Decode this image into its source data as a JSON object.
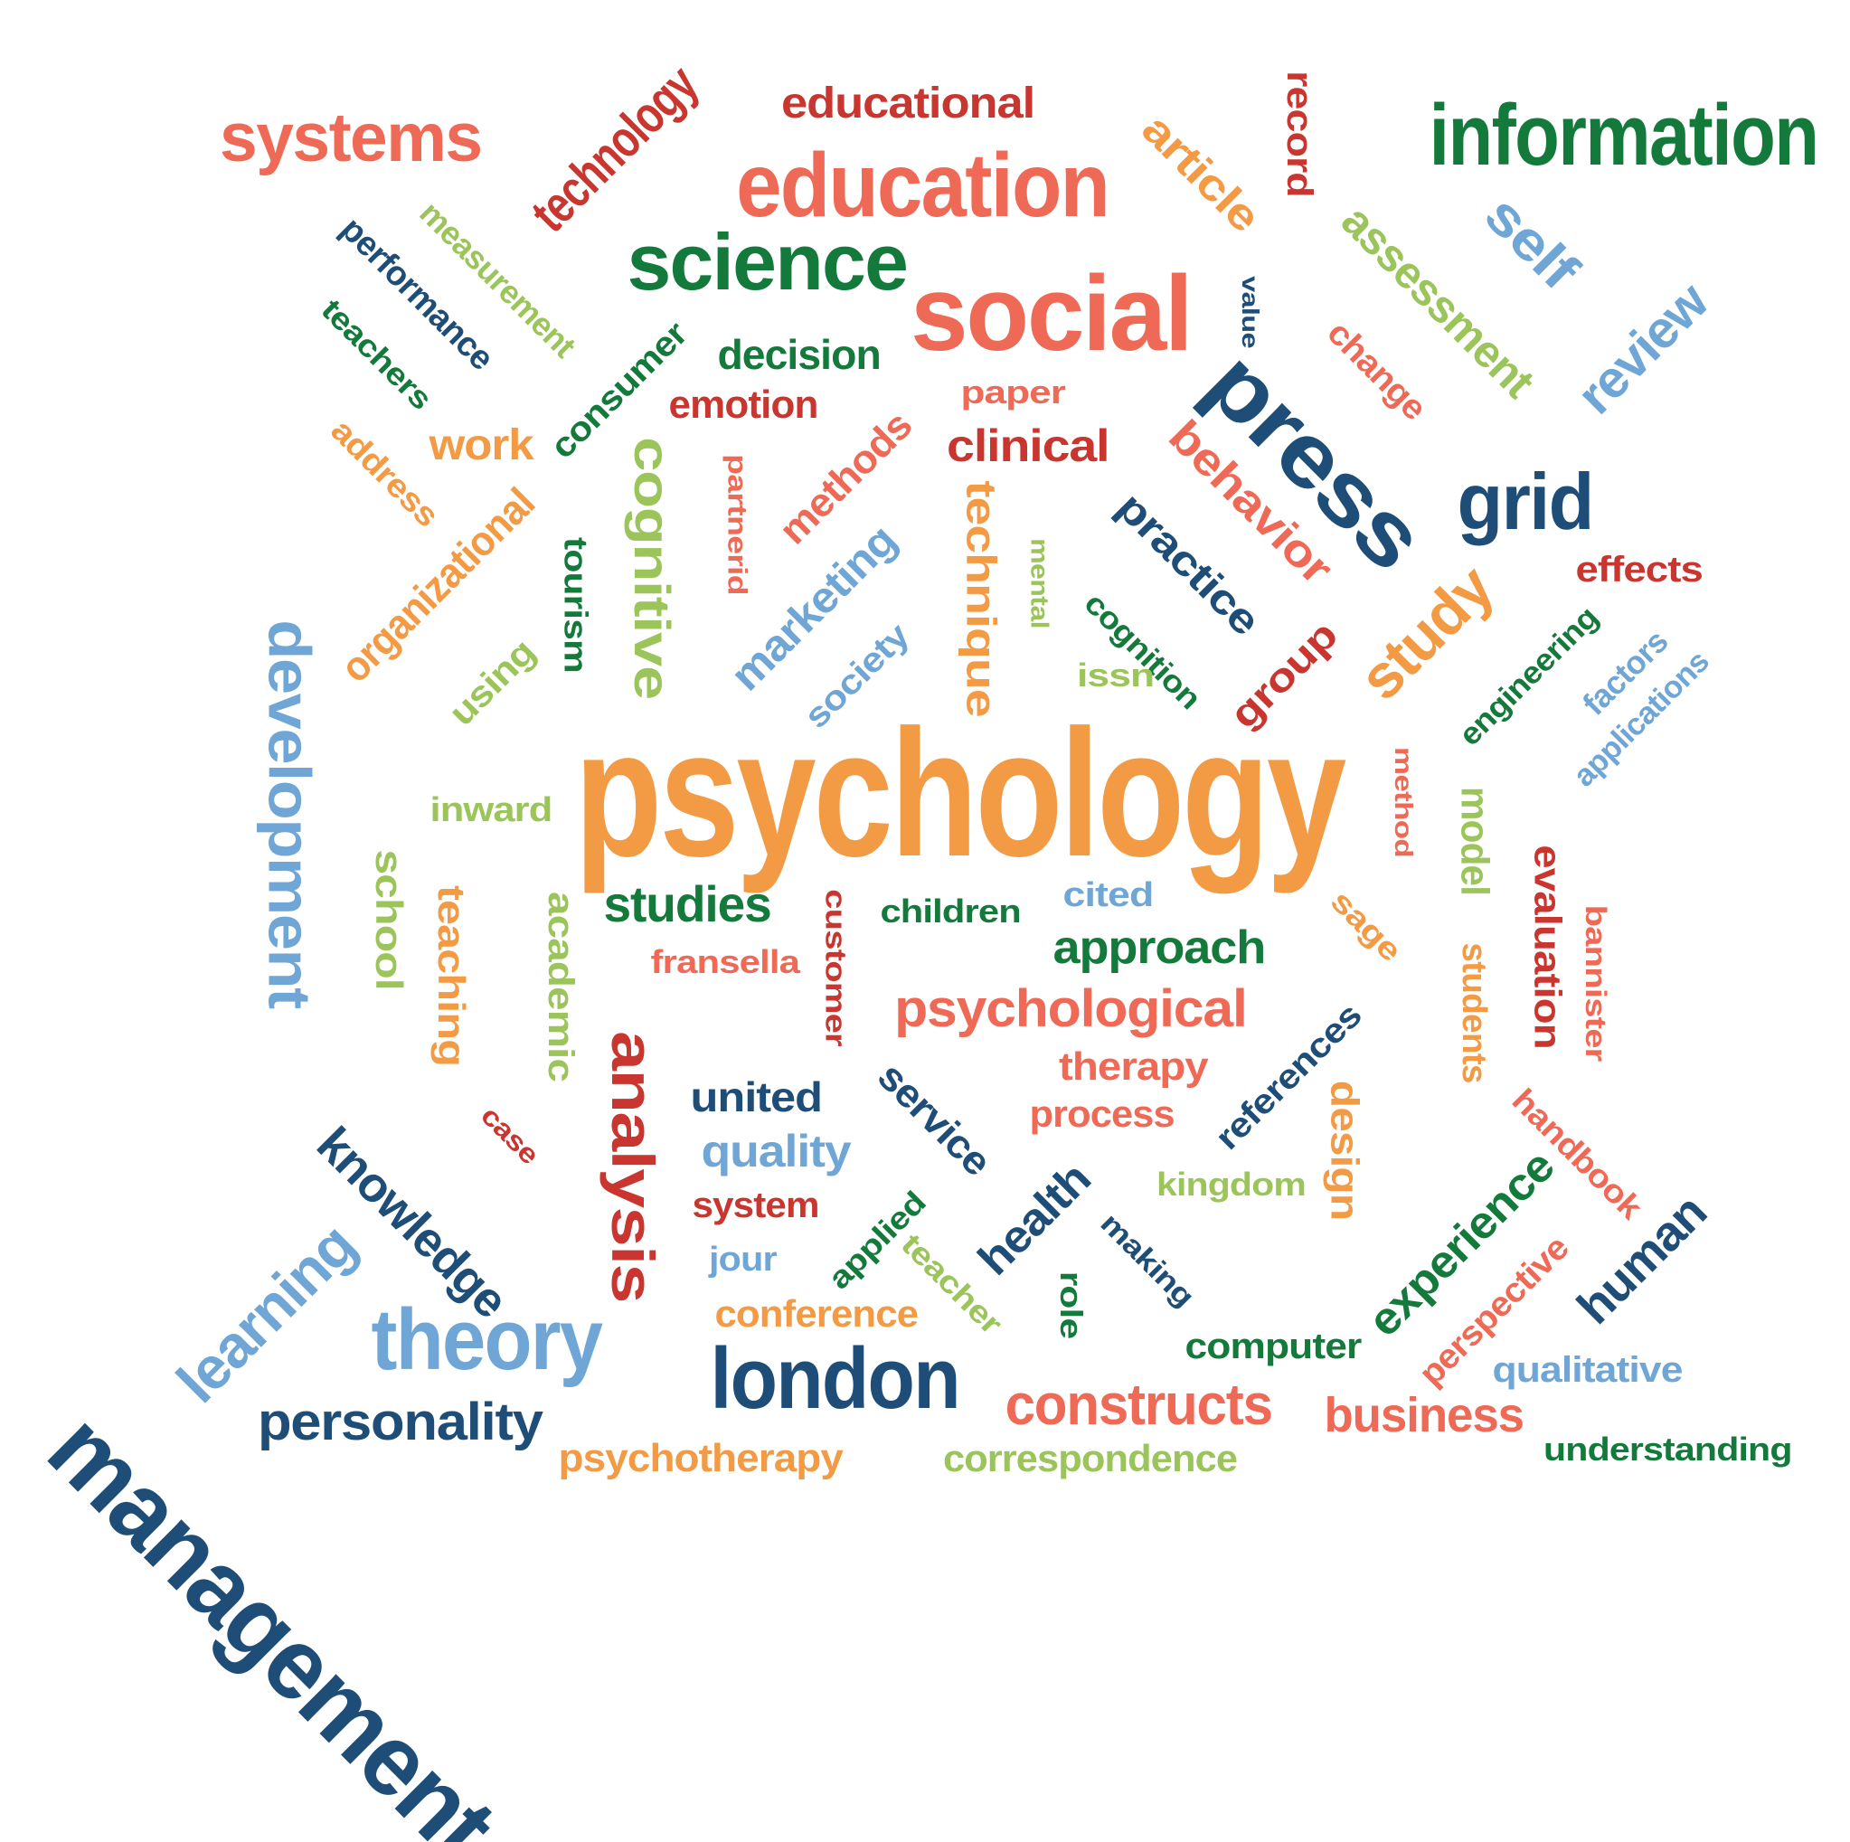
{
  "colors": {
    "dark_blue": "#1e4d78",
    "light_blue": "#6fa6d6",
    "dark_green": "#147a3c",
    "light_green": "#9bc55a",
    "orange": "#f39a45",
    "salmon": "#ee6a56",
    "red": "#c8362f"
  },
  "words": [
    {
      "text": "psychology",
      "color": "orange",
      "weight": 100
    },
    {
      "text": "management",
      "color": "dark_blue",
      "weight": 52
    },
    {
      "text": "information",
      "color": "dark_green",
      "weight": 48
    },
    {
      "text": "social",
      "color": "salmon",
      "weight": 48
    },
    {
      "text": "education",
      "color": "salmon",
      "weight": 46
    },
    {
      "text": "development",
      "color": "light_blue",
      "weight": 44
    },
    {
      "text": "london",
      "color": "dark_blue",
      "weight": 44
    },
    {
      "text": "press",
      "color": "dark_blue",
      "weight": 44
    },
    {
      "text": "theory",
      "color": "light_blue",
      "weight": 42
    },
    {
      "text": "science",
      "color": "dark_green",
      "weight": 42
    },
    {
      "text": "systems",
      "color": "salmon",
      "weight": 40
    },
    {
      "text": "grid",
      "color": "dark_blue",
      "weight": 40
    },
    {
      "text": "analysis",
      "color": "red",
      "weight": 40
    },
    {
      "text": "study",
      "color": "orange",
      "weight": 38
    },
    {
      "text": "learning",
      "color": "light_blue",
      "weight": 38
    },
    {
      "text": "technology",
      "color": "red",
      "weight": 34
    },
    {
      "text": "constructs",
      "color": "salmon",
      "weight": 34
    },
    {
      "text": "cognitive",
      "color": "light_green",
      "weight": 34
    },
    {
      "text": "self",
      "color": "light_blue",
      "weight": 34
    },
    {
      "text": "review",
      "color": "light_blue",
      "weight": 34
    },
    {
      "text": "personality",
      "color": "dark_blue",
      "weight": 32
    },
    {
      "text": "knowledge",
      "color": "dark_blue",
      "weight": 32
    },
    {
      "text": "human",
      "color": "dark_blue",
      "weight": 32
    },
    {
      "text": "psychological",
      "color": "salmon",
      "weight": 32
    },
    {
      "text": "business",
      "color": "salmon",
      "weight": 32
    },
    {
      "text": "approach",
      "color": "dark_green",
      "weight": 30
    },
    {
      "text": "assessment",
      "color": "light_green",
      "weight": 30
    },
    {
      "text": "behavior",
      "color": "salmon",
      "weight": 30
    },
    {
      "text": "studies",
      "color": "dark_green",
      "weight": 30
    },
    {
      "text": "experience",
      "color": "dark_green",
      "weight": 30
    },
    {
      "text": "practice",
      "color": "dark_blue",
      "weight": 28
    },
    {
      "text": "marketing",
      "color": "light_blue",
      "weight": 28
    },
    {
      "text": "technique",
      "color": "orange",
      "weight": 28
    },
    {
      "text": "educational",
      "color": "red",
      "weight": 28
    },
    {
      "text": "article",
      "color": "orange",
      "weight": 28
    },
    {
      "text": "organizational",
      "color": "orange",
      "weight": 28
    },
    {
      "text": "health",
      "color": "dark_blue",
      "weight": 28
    },
    {
      "text": "quality",
      "color": "light_blue",
      "weight": 28
    },
    {
      "text": "united",
      "color": "dark_blue",
      "weight": 28
    },
    {
      "text": "design",
      "color": "orange",
      "weight": 28
    },
    {
      "text": "clinical",
      "color": "red",
      "weight": 28
    },
    {
      "text": "evaluation",
      "color": "red",
      "weight": 26
    },
    {
      "text": "model",
      "color": "light_green",
      "weight": 26
    },
    {
      "text": "work",
      "color": "orange",
      "weight": 26
    },
    {
      "text": "methods",
      "color": "salmon",
      "weight": 26
    },
    {
      "text": "group",
      "color": "red",
      "weight": 26
    },
    {
      "text": "decision",
      "color": "dark_green",
      "weight": 26
    },
    {
      "text": "therapy",
      "color": "salmon",
      "weight": 26
    },
    {
      "text": "service",
      "color": "dark_blue",
      "weight": 26
    },
    {
      "text": "emotion",
      "color": "red",
      "weight": 26
    },
    {
      "text": "teaching",
      "color": "orange",
      "weight": 26
    },
    {
      "text": "psychotherapy",
      "color": "orange",
      "weight": 26
    },
    {
      "text": "correspondence",
      "color": "light_green",
      "weight": 26
    },
    {
      "text": "performance",
      "color": "dark_blue",
      "weight": 24
    },
    {
      "text": "measurement",
      "color": "light_green",
      "weight": 24
    },
    {
      "text": "academic",
      "color": "light_green",
      "weight": 24
    },
    {
      "text": "school",
      "color": "light_green",
      "weight": 24
    },
    {
      "text": "conference",
      "color": "orange",
      "weight": 24
    },
    {
      "text": "process",
      "color": "salmon",
      "weight": 24
    },
    {
      "text": "references",
      "color": "dark_blue",
      "weight": 24
    },
    {
      "text": "computer",
      "color": "dark_green",
      "weight": 24
    },
    {
      "text": "consumer",
      "color": "dark_green",
      "weight": 24
    },
    {
      "text": "students",
      "color": "orange",
      "weight": 24
    },
    {
      "text": "perspective",
      "color": "salmon",
      "weight": 24
    },
    {
      "text": "qualitative",
      "color": "light_blue",
      "weight": 24
    },
    {
      "text": "handbook",
      "color": "salmon",
      "weight": 24
    },
    {
      "text": "using",
      "color": "light_green",
      "weight": 24
    },
    {
      "text": "system",
      "color": "red",
      "weight": 24
    },
    {
      "text": "effects",
      "color": "red",
      "weight": 24
    },
    {
      "text": "change",
      "color": "salmon",
      "weight": 24
    },
    {
      "text": "record",
      "color": "red",
      "weight": 24
    },
    {
      "text": "tourism",
      "color": "dark_green",
      "weight": 24
    },
    {
      "text": "society",
      "color": "light_blue",
      "weight": 24
    },
    {
      "text": "factors",
      "color": "light_blue",
      "weight": 22
    },
    {
      "text": "applications",
      "color": "light_blue",
      "weight": 22
    },
    {
      "text": "engineering",
      "color": "dark_green",
      "weight": 22
    },
    {
      "text": "teachers",
      "color": "dark_green",
      "weight": 22
    },
    {
      "text": "address",
      "color": "orange",
      "weight": 22
    },
    {
      "text": "cognition",
      "color": "dark_green",
      "weight": 22
    },
    {
      "text": "understanding",
      "color": "dark_green",
      "weight": 22
    },
    {
      "text": "children",
      "color": "dark_green",
      "weight": 22
    },
    {
      "text": "fransella",
      "color": "salmon",
      "weight": 22
    },
    {
      "text": "kingdom",
      "color": "light_green",
      "weight": 22
    },
    {
      "text": "teacher",
      "color": "light_green",
      "weight": 22
    },
    {
      "text": "applied",
      "color": "dark_green",
      "weight": 22
    },
    {
      "text": "customer",
      "color": "red",
      "weight": 22
    },
    {
      "text": "bannister",
      "color": "salmon",
      "weight": 22
    },
    {
      "text": "sage",
      "color": "orange",
      "weight": 22
    },
    {
      "text": "making",
      "color": "dark_blue",
      "weight": 22
    },
    {
      "text": "role",
      "color": "dark_green",
      "weight": 22
    },
    {
      "text": "cited",
      "color": "light_blue",
      "weight": 22
    },
    {
      "text": "inward",
      "color": "light_green",
      "weight": 22
    },
    {
      "text": "issn",
      "color": "light_green",
      "weight": 22
    },
    {
      "text": "paper",
      "color": "salmon",
      "weight": 22
    },
    {
      "text": "partnerid",
      "color": "salmon",
      "weight": 20
    },
    {
      "text": "mental",
      "color": "light_green",
      "weight": 20
    },
    {
      "text": "method",
      "color": "salmon",
      "weight": 20
    },
    {
      "text": "jour",
      "color": "light_blue",
      "weight": 22
    },
    {
      "text": "case",
      "color": "red",
      "weight": 20
    },
    {
      "text": "value",
      "color": "dark_blue",
      "weight": 18
    }
  ]
}
